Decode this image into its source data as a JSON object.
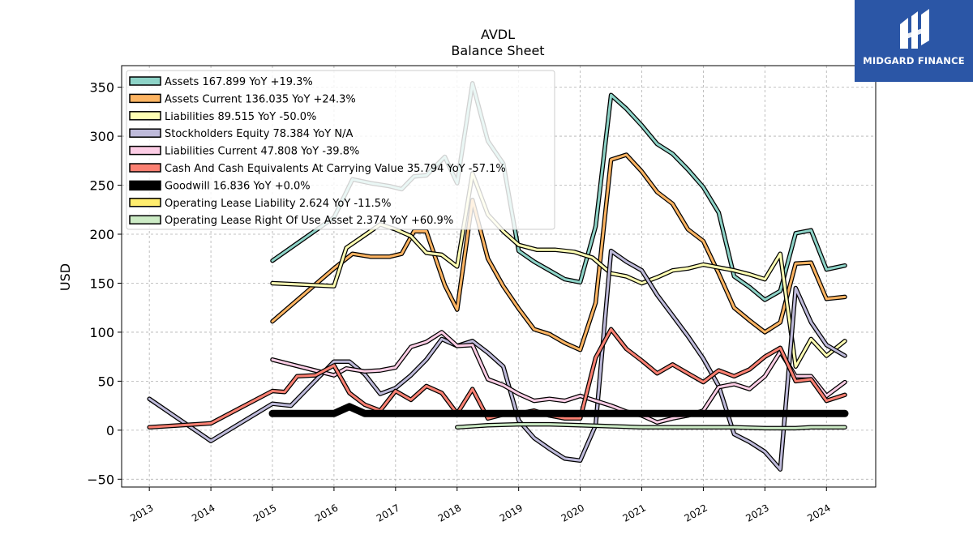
{
  "brand": {
    "name": "MIDGARD FINANCE",
    "bg_color": "#2b56a6",
    "icon": "midgard-logo-icon"
  },
  "chart_data": {
    "type": "line",
    "title": "AVDL",
    "subtitle": "Balance  Sheet",
    "ylabel": "USD",
    "xlabel": "",
    "ylim": [
      -58,
      372
    ],
    "xlim": [
      2012.55,
      2024.8
    ],
    "y_ticks": [
      -50,
      0,
      50,
      100,
      150,
      200,
      250,
      300,
      350
    ],
    "x_ticks": [
      2013,
      2014,
      2015,
      2016,
      2017,
      2018,
      2019,
      2020,
      2021,
      2022,
      2023,
      2024
    ],
    "grid": true,
    "legend_position": "top-left",
    "series": [
      {
        "name": "Assets  167.899 YoY +19.3%",
        "color": "#8dd3c7",
        "x": [
          2015.0,
          2016.0,
          2016.3,
          2016.6,
          2016.9,
          2017.1,
          2017.3,
          2017.5,
          2017.8,
          2018.0,
          2018.25,
          2018.5,
          2018.75,
          2019.0,
          2019.25,
          2019.5,
          2019.75,
          2020.0,
          2020.25,
          2020.5,
          2020.75,
          2021.0,
          2021.25,
          2021.5,
          2021.75,
          2022.0,
          2022.25,
          2022.5,
          2022.75,
          2023.0,
          2023.25,
          2023.5,
          2023.75,
          2024.0,
          2024.3
        ],
        "values": [
          173,
          217,
          256,
          252,
          249,
          246,
          259,
          260,
          279,
          252,
          354,
          295,
          272,
          183,
          172,
          163,
          154,
          151,
          208,
          342,
          328,
          311,
          292,
          282,
          266,
          248,
          222,
          157,
          146,
          133,
          142,
          201,
          204,
          164,
          168
        ]
      },
      {
        "name": "Assets Current  136.035 YoY +24.3%",
        "color": "#fdb462",
        "x": [
          2015.0,
          2016.0,
          2016.3,
          2016.6,
          2016.9,
          2017.1,
          2017.3,
          2017.5,
          2017.8,
          2018.0,
          2018.25,
          2018.5,
          2018.75,
          2019.0,
          2019.25,
          2019.5,
          2019.75,
          2020.0,
          2020.25,
          2020.5,
          2020.75,
          2021.0,
          2021.25,
          2021.5,
          2021.75,
          2022.0,
          2022.25,
          2022.5,
          2022.75,
          2023.0,
          2023.25,
          2023.5,
          2023.75,
          2024.0,
          2024.3
        ],
        "values": [
          111,
          165,
          180,
          177,
          177,
          180,
          203,
          203,
          148,
          123,
          235,
          175,
          147,
          124,
          103,
          98,
          89,
          82,
          130,
          276,
          281,
          264,
          243,
          231,
          205,
          193,
          160,
          125,
          112,
          100,
          110,
          170,
          171,
          134,
          136
        ]
      },
      {
        "name": "Liabilities  89.515 YoY -50.0%",
        "color": "#ffffb3",
        "x": [
          2015.0,
          2016.0,
          2016.2,
          2016.5,
          2016.75,
          2017.0,
          2017.25,
          2017.5,
          2017.75,
          2018.0,
          2018.25,
          2018.5,
          2018.75,
          2019.0,
          2019.3,
          2019.6,
          2019.9,
          2020.2,
          2020.5,
          2020.75,
          2021.0,
          2021.25,
          2021.5,
          2021.75,
          2022.0,
          2022.25,
          2022.5,
          2022.75,
          2023.0,
          2023.25,
          2023.5,
          2023.75,
          2024.0,
          2024.3
        ],
        "values": [
          150,
          147,
          186,
          199,
          210,
          205,
          198,
          181,
          179,
          167,
          262,
          220,
          203,
          189,
          184,
          184,
          182,
          176,
          160,
          157,
          150,
          156,
          163,
          165,
          169,
          166,
          163,
          159,
          154,
          180,
          65,
          93,
          76,
          91
        ]
      },
      {
        "name": "Stockholders Equity  78.384 YoY N/A",
        "color": "#bebada",
        "x": [
          2013.0,
          2014.0,
          2015.0,
          2015.3,
          2016.0,
          2016.25,
          2016.5,
          2016.75,
          2017.0,
          2017.25,
          2017.5,
          2017.75,
          2018.0,
          2018.25,
          2018.5,
          2018.75,
          2019.0,
          2019.25,
          2019.5,
          2019.75,
          2020.0,
          2020.25,
          2020.5,
          2020.75,
          2021.0,
          2021.25,
          2021.5,
          2021.75,
          2022.0,
          2022.25,
          2022.5,
          2022.75,
          2023.0,
          2023.25,
          2023.5,
          2023.75,
          2024.0,
          2024.3
        ],
        "values": [
          32,
          -11,
          27,
          25,
          70,
          70,
          57,
          37,
          43,
          56,
          72,
          93,
          86,
          91,
          79,
          65,
          10,
          -8,
          -19,
          -29,
          -31,
          5,
          183,
          172,
          163,
          138,
          117,
          96,
          73,
          45,
          -4,
          -12,
          -22,
          -40,
          145,
          110,
          87,
          76
        ]
      },
      {
        "name": "Liabilities Current  47.808 YoY -39.8%",
        "color": "#fccde5",
        "x": [
          2015.0,
          2016.0,
          2016.2,
          2016.5,
          2016.75,
          2017.0,
          2017.25,
          2017.5,
          2017.75,
          2018.0,
          2018.25,
          2018.5,
          2018.75,
          2019.0,
          2019.25,
          2019.5,
          2019.75,
          2020.0,
          2020.25,
          2020.5,
          2020.75,
          2021.0,
          2021.25,
          2021.5,
          2021.75,
          2022.0,
          2022.25,
          2022.5,
          2022.75,
          2023.0,
          2023.25,
          2023.5,
          2023.75,
          2024.0,
          2024.3
        ],
        "values": [
          72,
          56,
          63,
          60,
          61,
          64,
          85,
          90,
          100,
          86,
          87,
          52,
          46,
          37,
          30,
          32,
          30,
          35,
          30,
          25,
          19,
          15,
          8,
          12,
          15,
          20,
          44,
          47,
          42,
          55,
          80,
          55,
          55,
          35,
          49
        ]
      },
      {
        "name": "Cash And Cash Equivalents At Carrying Value  35.794 YoY -57.1%",
        "color": "#fb8072",
        "x": [
          2013.0,
          2014.0,
          2015.0,
          2015.2,
          2015.4,
          2015.7,
          2016.0,
          2016.25,
          2016.5,
          2016.75,
          2017.0,
          2017.25,
          2017.5,
          2017.75,
          2018.0,
          2018.25,
          2018.5,
          2018.75,
          2019.0,
          2019.25,
          2019.5,
          2019.75,
          2020.0,
          2020.25,
          2020.5,
          2020.75,
          2021.0,
          2021.25,
          2021.5,
          2021.75,
          2022.0,
          2022.25,
          2022.5,
          2022.75,
          2023.0,
          2023.25,
          2023.5,
          2023.75,
          2024.0,
          2024.3
        ],
        "values": [
          3,
          7,
          40,
          39,
          55,
          56,
          66,
          38,
          26,
          20,
          40,
          31,
          45,
          38,
          17,
          42,
          12,
          16,
          17,
          20,
          15,
          12,
          12,
          74,
          103,
          83,
          71,
          58,
          67,
          58,
          49,
          61,
          55,
          62,
          75,
          84,
          50,
          52,
          30,
          36
        ]
      },
      {
        "name": "Goodwill  16.836 YoY +0.0%",
        "color": "#000000",
        "x": [
          2015.0,
          2016.0,
          2016.25,
          2016.5,
          2017.0,
          2018.0,
          2019.0,
          2020.0,
          2021.0,
          2022.0,
          2023.0,
          2024.3
        ],
        "values": [
          17,
          17,
          24,
          17,
          17,
          17,
          17,
          17,
          17,
          17,
          17,
          17
        ]
      },
      {
        "name": "Operating Lease Liability  2.624 YoY -11.5%",
        "color": "#ffed6f",
        "x": [],
        "values": []
      },
      {
        "name": "Operating Lease Right Of Use Asset  2.374 YoY +60.9%",
        "color": "#ccebc5",
        "x": [
          2018.0,
          2018.5,
          2019.0,
          2019.5,
          2020.0,
          2020.5,
          2021.0,
          2021.5,
          2022.0,
          2022.5,
          2023.0,
          2023.5,
          2023.75,
          2024.0,
          2024.3
        ],
        "values": [
          3,
          5,
          6,
          6,
          5,
          4,
          3,
          3,
          3,
          3,
          2,
          2,
          3,
          3,
          3
        ]
      }
    ]
  }
}
